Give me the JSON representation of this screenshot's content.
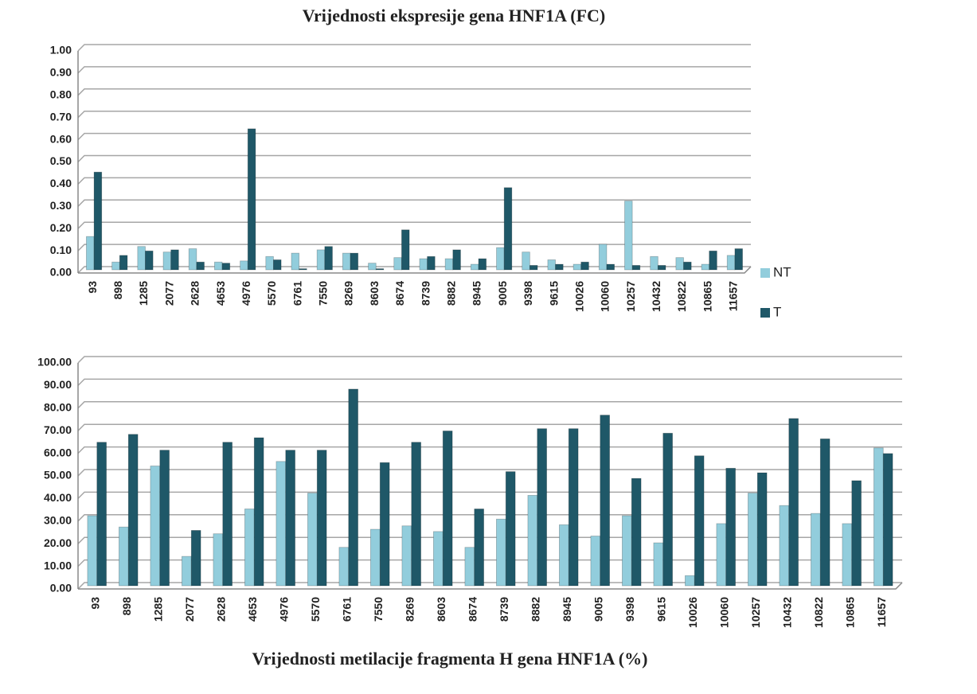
{
  "chart_data": [
    {
      "type": "bar",
      "title": "Vrijednosti ekspresije gena HNF1A (FC)",
      "categories": [
        "93",
        "898",
        "1285",
        "2077",
        "2628",
        "4653",
        "4976",
        "5570",
        "6761",
        "7550",
        "8269",
        "8603",
        "8674",
        "8739",
        "8882",
        "8945",
        "9005",
        "9398",
        "9615",
        "10026",
        "10060",
        "10257",
        "10432",
        "10822",
        "10865",
        "11657"
      ],
      "series": [
        {
          "name": "NT",
          "color": "#92cddc",
          "values": [
            0.15,
            0.035,
            0.105,
            0.08,
            0.095,
            0.035,
            0.04,
            0.06,
            0.075,
            0.09,
            0.075,
            0.03,
            0.055,
            0.05,
            0.05,
            0.025,
            0.1,
            0.08,
            0.045,
            0.025,
            0.115,
            0.31,
            0.06,
            0.055,
            0.025,
            0.065
          ]
        },
        {
          "name": "T",
          "color": "#1f5868",
          "values": [
            0.44,
            0.065,
            0.085,
            0.09,
            0.035,
            0.03,
            0.635,
            0.045,
            0.005,
            0.105,
            0.075,
            0.005,
            0.18,
            0.06,
            0.09,
            0.05,
            0.37,
            0.02,
            0.025,
            0.035,
            0.025,
            0.02,
            0.02,
            0.035,
            0.085,
            0.095
          ]
        }
      ],
      "ylim": [
        0,
        1
      ],
      "yticks": [
        {
          "value": 0,
          "label": "0.00"
        },
        {
          "value": 0.1,
          "label": "0.10"
        },
        {
          "value": 0.2,
          "label": "0.20"
        },
        {
          "value": 0.3,
          "label": "0.30"
        },
        {
          "value": 0.4,
          "label": "0.40"
        },
        {
          "value": 0.5,
          "label": "0.50"
        },
        {
          "value": 0.6,
          "label": "0.60"
        },
        {
          "value": 0.7,
          "label": "0.70"
        },
        {
          "value": 0.8,
          "label": "0.80"
        },
        {
          "value": 0.9,
          "label": "0.90"
        },
        {
          "value": 1,
          "label": "1.00"
        }
      ],
      "grid": true,
      "legend": "right"
    },
    {
      "type": "bar",
      "title": "Vrijednosti metilacije fragmenta H gena HNF1A (%)",
      "categories": [
        "93",
        "898",
        "1285",
        "2077",
        "2628",
        "4653",
        "4976",
        "5570",
        "6761",
        "7550",
        "8269",
        "8603",
        "8674",
        "8739",
        "8882",
        "8945",
        "9005",
        "9398",
        "9615",
        "10026",
        "10060",
        "10257",
        "10432",
        "10822",
        "10865",
        "11657"
      ],
      "series": [
        {
          "color": "#92cddc",
          "values": [
            31,
            26,
            53,
            13,
            23,
            34,
            55,
            41,
            17,
            25,
            26.5,
            24,
            17,
            29.5,
            40,
            27,
            22,
            31,
            19,
            4.5,
            27.5,
            41,
            35.5,
            32,
            27.5,
            61
          ]
        },
        {
          "color": "#1f5868",
          "values": [
            63.5,
            67,
            60,
            24.5,
            63.5,
            65.5,
            60,
            60,
            87,
            54.5,
            63.5,
            68.5,
            34,
            50.5,
            69.5,
            69.5,
            75.5,
            47.5,
            67.5,
            57.5,
            52,
            50,
            74,
            65,
            46.5,
            58.5
          ]
        }
      ],
      "ylim": [
        0,
        100
      ],
      "yticks": [
        {
          "value": 0,
          "label": "0.00"
        },
        {
          "value": 10,
          "label": "10.00"
        },
        {
          "value": 20,
          "label": "20.00"
        },
        {
          "value": 30,
          "label": "30.00"
        },
        {
          "value": 40,
          "label": "40.00"
        },
        {
          "value": 50,
          "label": "50.00"
        },
        {
          "value": 60,
          "label": "60.00"
        },
        {
          "value": 70,
          "label": "70.00"
        },
        {
          "value": 80,
          "label": "80.00"
        },
        {
          "value": 90,
          "label": "90.00"
        },
        {
          "value": 100,
          "label": "100.00"
        }
      ],
      "grid": true
    }
  ]
}
